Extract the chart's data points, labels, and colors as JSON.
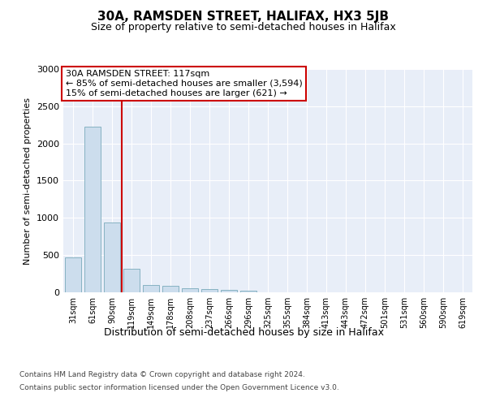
{
  "title": "30A, RAMSDEN STREET, HALIFAX, HX3 5JB",
  "subtitle": "Size of property relative to semi-detached houses in Halifax",
  "xlabel": "Distribution of semi-detached houses by size in Halifax",
  "ylabel": "Number of semi-detached properties",
  "categories": [
    "31sqm",
    "61sqm",
    "90sqm",
    "119sqm",
    "149sqm",
    "178sqm",
    "208sqm",
    "237sqm",
    "266sqm",
    "296sqm",
    "325sqm",
    "355sqm",
    "384sqm",
    "413sqm",
    "443sqm",
    "472sqm",
    "501sqm",
    "531sqm",
    "560sqm",
    "590sqm",
    "619sqm"
  ],
  "values": [
    470,
    2230,
    940,
    320,
    100,
    85,
    60,
    40,
    30,
    25,
    0,
    0,
    0,
    0,
    0,
    0,
    0,
    0,
    0,
    0,
    0
  ],
  "bar_color": "#ccdded",
  "bar_edge_color": "#7aaabb",
  "highlight_line_color": "#cc0000",
  "highlight_bar_index": 2,
  "annotation_text": "30A RAMSDEN STREET: 117sqm\n← 85% of semi-detached houses are smaller (3,594)\n15% of semi-detached houses are larger (621) →",
  "annotation_box_color": "#ffffff",
  "annotation_box_edge_color": "#cc0000",
  "ylim": [
    0,
    3000
  ],
  "yticks": [
    0,
    500,
    1000,
    1500,
    2000,
    2500,
    3000
  ],
  "ax_facecolor": "#e8eef8",
  "grid_color": "#ffffff",
  "fig_facecolor": "#ffffff",
  "footer_line1": "Contains HM Land Registry data © Crown copyright and database right 2024.",
  "footer_line2": "Contains public sector information licensed under the Open Government Licence v3.0.",
  "title_fontsize": 11,
  "subtitle_fontsize": 9,
  "ylabel_fontsize": 8,
  "xlabel_fontsize": 9,
  "tick_fontsize": 8,
  "xtick_fontsize": 7,
  "footer_fontsize": 6.5,
  "annot_fontsize": 8
}
